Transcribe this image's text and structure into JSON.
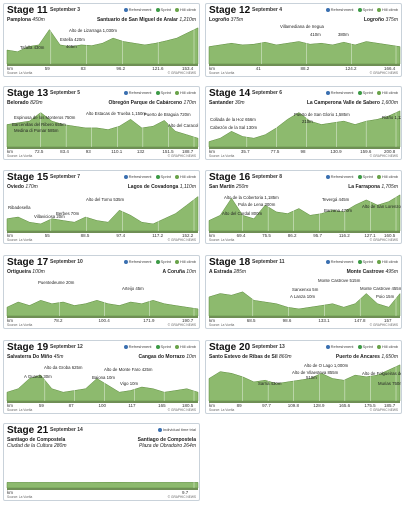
{
  "legend": {
    "refreshment": "Refreshment",
    "sprint": "Sprint",
    "hill": "Hill climb",
    "itt": "Individual time trial"
  },
  "source": "Source: La Vuelta",
  "credit": "© GRAPHIC NEWS",
  "stages": [
    {
      "num": "11",
      "title": "Stage 11",
      "date": "September 3",
      "start": "Pamplona",
      "start_alt": "450m",
      "finish": "Santuario de San Miguel de Aralar",
      "finish_alt": "1,210m",
      "total": 153.4,
      "labels": [
        "Alto de Lizarraga 1,030m",
        "Estella 420m",
        "405m",
        "Tafalla 430m"
      ],
      "km": [
        "km",
        "59",
        "83",
        "96.2",
        "121.6",
        "153.4"
      ]
    },
    {
      "num": "12",
      "title": "Stage 12",
      "date": "September 4",
      "start": "Logroño",
      "start_alt": "375m",
      "finish": "Logroño",
      "finish_alt": "375m",
      "total": 166.4,
      "labels": [
        "Villamediana de Iregua",
        "410m",
        "380m"
      ],
      "km": [
        "km",
        "41",
        "88.2",
        "124.2",
        "166.4"
      ]
    },
    {
      "num": "13",
      "title": "Stage 13",
      "date": "September 5",
      "start": "Belorado",
      "start_alt": "820m",
      "finish": "Obregón Parque de Cabárceno",
      "finish_alt": "170m",
      "labels": [
        "Alto Estacas de Trueba 1,150m",
        "Espinosa de los Monteros 750m",
        "Barcenillas del Ribero 655m",
        "Medina di Pomar 585m",
        "Puerto de Braguia 720m",
        "Alto del Caracol 820m"
      ],
      "km": [
        "km",
        "72.5",
        "83.4",
        "93",
        "110.1",
        "132",
        "151.5",
        "188.7"
      ]
    },
    {
      "num": "14",
      "title": "Stage 14",
      "date": "September 6",
      "start": "Santander",
      "start_alt": "30m",
      "finish": "La Camperona Valle de Sabero",
      "finish_alt": "1,600m",
      "labels": [
        "Puerto de San Glorio 1,585m",
        "Collada de la Hoz 656m",
        "210m",
        "Cabezón de la Sal 130m",
        "Riaño 1,127m"
      ],
      "km": [
        "km",
        "35.7",
        "77.5",
        "98",
        "130.9",
        "159.6",
        "200.8"
      ]
    },
    {
      "num": "15",
      "title": "Stage 15",
      "date": "September 7",
      "start": "Oviedo",
      "start_alt": "170m",
      "finish": "Lagos de Covadonga",
      "finish_alt": "1,110m",
      "labels": [
        "Alto del Torno 535m",
        "Ribadesella",
        "Berbes 70m",
        "Villaviciosa 20m"
      ],
      "km": [
        "km",
        "55",
        "88.5",
        "97.4",
        "117.2",
        "152.2"
      ]
    },
    {
      "num": "16",
      "title": "Stage 16",
      "date": "September 8",
      "start": "San Martín",
      "start_alt": "250m",
      "finish": "La Farrapona",
      "finish_alt": "1,705m",
      "labels": [
        "Alto de la Cobertoria 1,185m",
        "Pola de Lena 300m",
        "Alto del Cordal 800m",
        "Tevergá 445m",
        "Barzana 470m",
        "Alto de San Lorenzo 1,347m"
      ],
      "km": [
        "km",
        "69.4",
        "75.5",
        "86.2",
        "95.7",
        "116.2",
        "127.1",
        "160.5"
      ]
    },
    {
      "num": "17",
      "title": "Stage 17",
      "date": "September 10",
      "start": "Ortigueira",
      "start_alt": "100m",
      "finish": "A Coruña",
      "finish_alt": "10m",
      "labels": [
        "Puentedeume 20m",
        "Arteijo 45m"
      ],
      "km": [
        "km",
        "78.2",
        "100.4",
        "171.9",
        "190.7"
      ]
    },
    {
      "num": "18",
      "title": "Stage 18",
      "date": "September 11",
      "start": "A Estrada",
      "start_alt": "285m",
      "finish": "Monte Castrove",
      "finish_alt": "495m",
      "labels": [
        "Monte Castrove 515m",
        "Sanxenxo 5m",
        "A Lanza 10m",
        "Monte Castrove 455m",
        "Poio 15m"
      ],
      "km": [
        "km",
        "68.5",
        "98.6",
        "133.1",
        "147.8",
        "157"
      ]
    },
    {
      "num": "19",
      "title": "Stage 19",
      "date": "September 12",
      "start": "Salvaterra Do Miño",
      "start_alt": "45m",
      "finish": "Cangas do Morrazo",
      "finish_alt": "10m",
      "labels": [
        "Alto da Groba 625m",
        "A Guarda 30m",
        "Alto de Monte Faro 425m",
        "Baiona 10m",
        "Vigo 10m"
      ],
      "km": [
        "km",
        "59",
        "87",
        "100",
        "117",
        "165",
        "180.5"
      ]
    },
    {
      "num": "20",
      "title": "Stage 20",
      "date": "September 13",
      "start": "Santo Estevo de Ribas de Sil",
      "start_alt": "860m",
      "finish": "Puerto de Ancares",
      "finish_alt": "1,650m",
      "labels": [
        "Alto de O Lago 1,000m",
        "Alto de Vilaesteva 855m",
        "510m",
        "Sarria 430m",
        "Alto de Folgueiras de Aigas 990m",
        "Murias 750m"
      ],
      "km": [
        "km",
        "89",
        "97.7",
        "109.8",
        "128.9",
        "165.6",
        "175.5",
        "185.7"
      ]
    },
    {
      "num": "21",
      "title": "Stage 21",
      "date": "September 14",
      "start": "Santiago de Compostela",
      "start_alt": "Ciudad de la Cultura 280m",
      "finish": "Santiago de Compostela",
      "finish_alt": "Plaza de Obradoiro 264m",
      "labels": [],
      "km": [
        "km",
        "9.7"
      ]
    }
  ]
}
